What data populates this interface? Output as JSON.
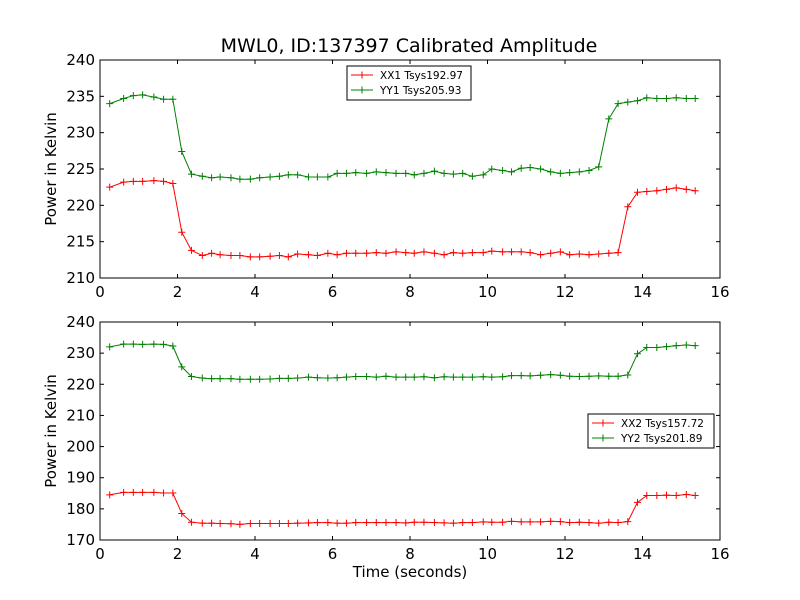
{
  "title": "MWL0, ID:137397 Calibrated Amplitude",
  "chart_data": [
    {
      "type": "line",
      "xlabel": "",
      "ylabel": "Power in Kelvin",
      "xlim": [
        0,
        16
      ],
      "ylim": [
        210,
        240
      ],
      "xticks": [
        0,
        2,
        4,
        6,
        8,
        10,
        12,
        14,
        16
      ],
      "yticks": [
        210,
        215,
        220,
        225,
        230,
        235,
        240
      ],
      "legend_position": "top-center",
      "x": [
        0.25,
        0.61,
        0.86,
        1.1,
        1.39,
        1.64,
        1.88,
        2.11,
        2.36,
        2.64,
        2.88,
        3.1,
        3.38,
        3.61,
        3.88,
        4.12,
        4.39,
        4.63,
        4.86,
        5.1,
        5.38,
        5.61,
        5.88,
        6.12,
        6.36,
        6.6,
        6.88,
        7.13,
        7.38,
        7.64,
        7.89,
        8.11,
        8.36,
        8.63,
        8.88,
        9.12,
        9.36,
        9.61,
        9.89,
        10.11,
        10.39,
        10.62,
        10.87,
        11.1,
        11.37,
        11.63,
        11.88,
        12.12,
        12.37,
        12.62,
        12.87,
        13.13,
        13.37,
        13.62,
        13.87,
        14.11,
        14.37,
        14.62,
        14.87,
        15.13,
        15.36
      ],
      "series": [
        {
          "name": "XX1 Tsys192.97",
          "color": "#ff0000",
          "values": [
            222.5,
            223.2,
            223.3,
            223.3,
            223.4,
            223.3,
            223.0,
            216.3,
            213.8,
            213.1,
            213.4,
            213.2,
            213.1,
            213.1,
            212.9,
            212.9,
            213.0,
            213.1,
            212.9,
            213.3,
            213.2,
            213.1,
            213.4,
            213.2,
            213.4,
            213.4,
            213.4,
            213.5,
            213.4,
            213.6,
            213.5,
            213.4,
            213.6,
            213.4,
            213.2,
            213.5,
            213.4,
            213.5,
            213.5,
            213.7,
            213.6,
            213.6,
            213.6,
            213.5,
            213.2,
            213.4,
            213.6,
            213.2,
            213.3,
            213.2,
            213.3,
            213.4,
            213.5,
            219.8,
            221.8,
            221.9,
            222.0,
            222.2,
            222.4,
            222.2,
            222.0
          ]
        },
        {
          "name": "YY1 Tsys205.93",
          "color": "#008000",
          "values": [
            234.0,
            234.7,
            235.1,
            235.2,
            234.9,
            234.6,
            234.6,
            227.4,
            224.3,
            224.0,
            223.8,
            223.9,
            223.8,
            223.6,
            223.6,
            223.8,
            223.9,
            224.0,
            224.2,
            224.2,
            223.9,
            223.9,
            223.9,
            224.4,
            224.4,
            224.5,
            224.4,
            224.6,
            224.5,
            224.4,
            224.4,
            224.2,
            224.4,
            224.7,
            224.4,
            224.3,
            224.4,
            224.0,
            224.2,
            225.0,
            224.8,
            224.6,
            225.1,
            225.2,
            225.0,
            224.6,
            224.4,
            224.5,
            224.6,
            224.8,
            225.3,
            231.9,
            234.0,
            234.2,
            234.4,
            234.8,
            234.7,
            234.7,
            234.8,
            234.7,
            234.7
          ]
        }
      ]
    },
    {
      "type": "line",
      "xlabel": "Time (seconds)",
      "ylabel": "Power in Kelvin",
      "xlim": [
        0,
        16
      ],
      "ylim": [
        170,
        240
      ],
      "xticks": [
        0,
        2,
        4,
        6,
        8,
        10,
        12,
        14,
        16
      ],
      "yticks": [
        170,
        180,
        190,
        200,
        210,
        220,
        230,
        240
      ],
      "legend_position": "center-right",
      "x": [
        0.25,
        0.61,
        0.86,
        1.1,
        1.39,
        1.64,
        1.88,
        2.11,
        2.36,
        2.64,
        2.88,
        3.1,
        3.38,
        3.61,
        3.88,
        4.12,
        4.39,
        4.63,
        4.86,
        5.1,
        5.38,
        5.61,
        5.88,
        6.12,
        6.36,
        6.6,
        6.88,
        7.13,
        7.38,
        7.64,
        7.89,
        8.11,
        8.36,
        8.63,
        8.88,
        9.12,
        9.36,
        9.61,
        9.89,
        10.11,
        10.39,
        10.62,
        10.87,
        11.1,
        11.37,
        11.63,
        11.88,
        12.12,
        12.37,
        12.62,
        12.87,
        13.13,
        13.37,
        13.62,
        13.87,
        14.11,
        14.37,
        14.62,
        14.87,
        15.13,
        15.36
      ],
      "series": [
        {
          "name": "XX2 Tsys157.72",
          "color": "#ff0000",
          "values": [
            184.5,
            185.3,
            185.3,
            185.3,
            185.3,
            185.1,
            185.1,
            178.5,
            175.7,
            175.4,
            175.4,
            175.3,
            175.2,
            175.0,
            175.3,
            175.3,
            175.3,
            175.3,
            175.3,
            175.4,
            175.5,
            175.6,
            175.6,
            175.4,
            175.4,
            175.6,
            175.6,
            175.6,
            175.6,
            175.6,
            175.5,
            175.7,
            175.7,
            175.6,
            175.5,
            175.4,
            175.6,
            175.6,
            175.8,
            175.7,
            175.7,
            176.0,
            175.8,
            175.8,
            175.8,
            176.0,
            175.9,
            175.6,
            175.7,
            175.6,
            175.4,
            175.7,
            175.6,
            175.9,
            182.1,
            184.3,
            184.3,
            184.4,
            184.3,
            184.6,
            184.3
          ]
        },
        {
          "name": "YY2 Tsys201.89",
          "color": "#008000",
          "values": [
            232.0,
            232.9,
            232.9,
            232.8,
            232.9,
            232.8,
            232.3,
            225.6,
            222.5,
            222.0,
            221.8,
            221.8,
            221.8,
            221.6,
            221.6,
            221.6,
            221.7,
            221.9,
            221.9,
            222.0,
            222.3,
            222.1,
            222.0,
            222.1,
            222.3,
            222.5,
            222.5,
            222.3,
            222.6,
            222.3,
            222.3,
            222.3,
            222.4,
            222.1,
            222.4,
            222.3,
            222.3,
            222.3,
            222.4,
            222.3,
            222.4,
            222.8,
            222.8,
            222.7,
            222.9,
            223.1,
            222.9,
            222.6,
            222.5,
            222.6,
            222.7,
            222.6,
            222.6,
            223.0,
            229.8,
            231.8,
            231.8,
            232.1,
            232.4,
            232.6,
            232.4
          ]
        }
      ]
    }
  ]
}
